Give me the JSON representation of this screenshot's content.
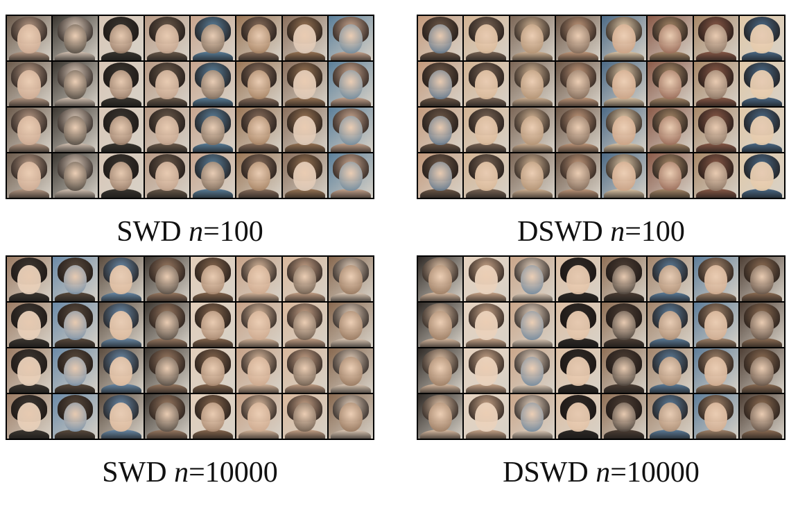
{
  "panels": [
    {
      "id": "swd-100",
      "method": "SWD",
      "var": "n",
      "eq": "=100",
      "palette": [
        "#6b5a4b",
        "#b89a85",
        "#8a6f5c",
        "#3a3630",
        "#c8a58e",
        "#5b7f9a",
        "#d8c6b6",
        "#9a7656"
      ]
    },
    {
      "id": "dswd-100",
      "method": "DSWD",
      "var": "n",
      "eq": "=100",
      "palette": [
        "#8a5a48",
        "#c49a7c",
        "#6e5848",
        "#a88868",
        "#d3b494",
        "#4c6a86",
        "#e0c8a8",
        "#7b6656"
      ]
    },
    {
      "id": "swd-10000",
      "method": "SWD",
      "var": "n",
      "eq": "=10000",
      "palette": [
        "#5a4b3e",
        "#c7a287",
        "#9b7b63",
        "#3e3832",
        "#d9b89c",
        "#6b8aa7",
        "#e2cdb9",
        "#87684f"
      ]
    },
    {
      "id": "dswd-10000",
      "method": "DSWD",
      "var": "n",
      "eq": "=10000",
      "palette": [
        "#4e3f35",
        "#caa68a",
        "#a2846b",
        "#2f2a26",
        "#ddbfa4",
        "#5e7d99",
        "#e6d2bf",
        "#8f6f55"
      ]
    }
  ],
  "grid": {
    "rows": 4,
    "cols": 8
  }
}
